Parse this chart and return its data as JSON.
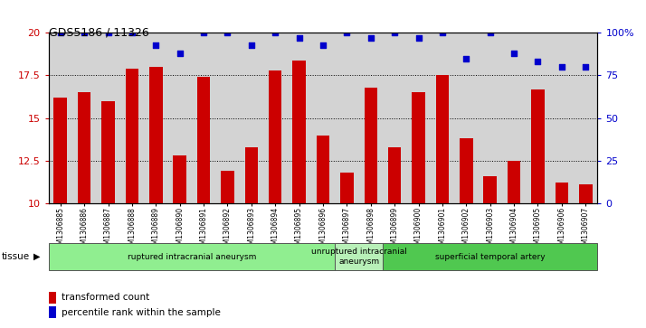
{
  "title": "GDS5186 / 11326",
  "samples": [
    "GSM1306885",
    "GSM1306886",
    "GSM1306887",
    "GSM1306888",
    "GSM1306889",
    "GSM1306890",
    "GSM1306891",
    "GSM1306892",
    "GSM1306893",
    "GSM1306894",
    "GSM1306895",
    "GSM1306896",
    "GSM1306897",
    "GSM1306898",
    "GSM1306899",
    "GSM1306900",
    "GSM1306901",
    "GSM1306902",
    "GSM1306903",
    "GSM1306904",
    "GSM1306905",
    "GSM1306906",
    "GSM1306907"
  ],
  "transformed_count": [
    16.2,
    16.5,
    16.0,
    17.9,
    18.0,
    12.8,
    17.4,
    11.9,
    13.3,
    17.8,
    18.4,
    14.0,
    11.8,
    16.8,
    13.3,
    16.5,
    17.5,
    13.8,
    11.6,
    12.5,
    16.7,
    11.2,
    11.1
  ],
  "percentile_rank": [
    100,
    100,
    100,
    100,
    93,
    88,
    100,
    100,
    93,
    100,
    97,
    93,
    100,
    97,
    100,
    97,
    100,
    85,
    100,
    88,
    83,
    80,
    80
  ],
  "ylim_left": [
    10,
    20
  ],
  "ylim_right": [
    0,
    100
  ],
  "yticks_left": [
    10,
    12.5,
    15,
    17.5,
    20
  ],
  "yticks_right": [
    0,
    25,
    50,
    75,
    100
  ],
  "ytick_labels_left": [
    "10",
    "12.5",
    "15",
    "17.5",
    "20"
  ],
  "ytick_labels_right": [
    "0",
    "25",
    "50",
    "75",
    "100%"
  ],
  "bar_color": "#cc0000",
  "dot_color": "#0000cc",
  "groups": [
    {
      "label": "ruptured intracranial aneurysm",
      "start": 0,
      "end": 12,
      "color": "#90ee90"
    },
    {
      "label": "unruptured intracranial\naneurysm",
      "start": 12,
      "end": 14,
      "color": "#b8f0b8"
    },
    {
      "label": "superficial temporal artery",
      "start": 14,
      "end": 23,
      "color": "#50c850"
    }
  ],
  "tissue_label": "tissue",
  "legend_items": [
    {
      "label": "transformed count",
      "color": "#cc0000"
    },
    {
      "label": "percentile rank within the sample",
      "color": "#0000cc"
    }
  ],
  "grid_color": "#000000",
  "bg_color": "#d3d3d3",
  "left_tick_color": "#cc0000",
  "right_tick_color": "#0000cc"
}
